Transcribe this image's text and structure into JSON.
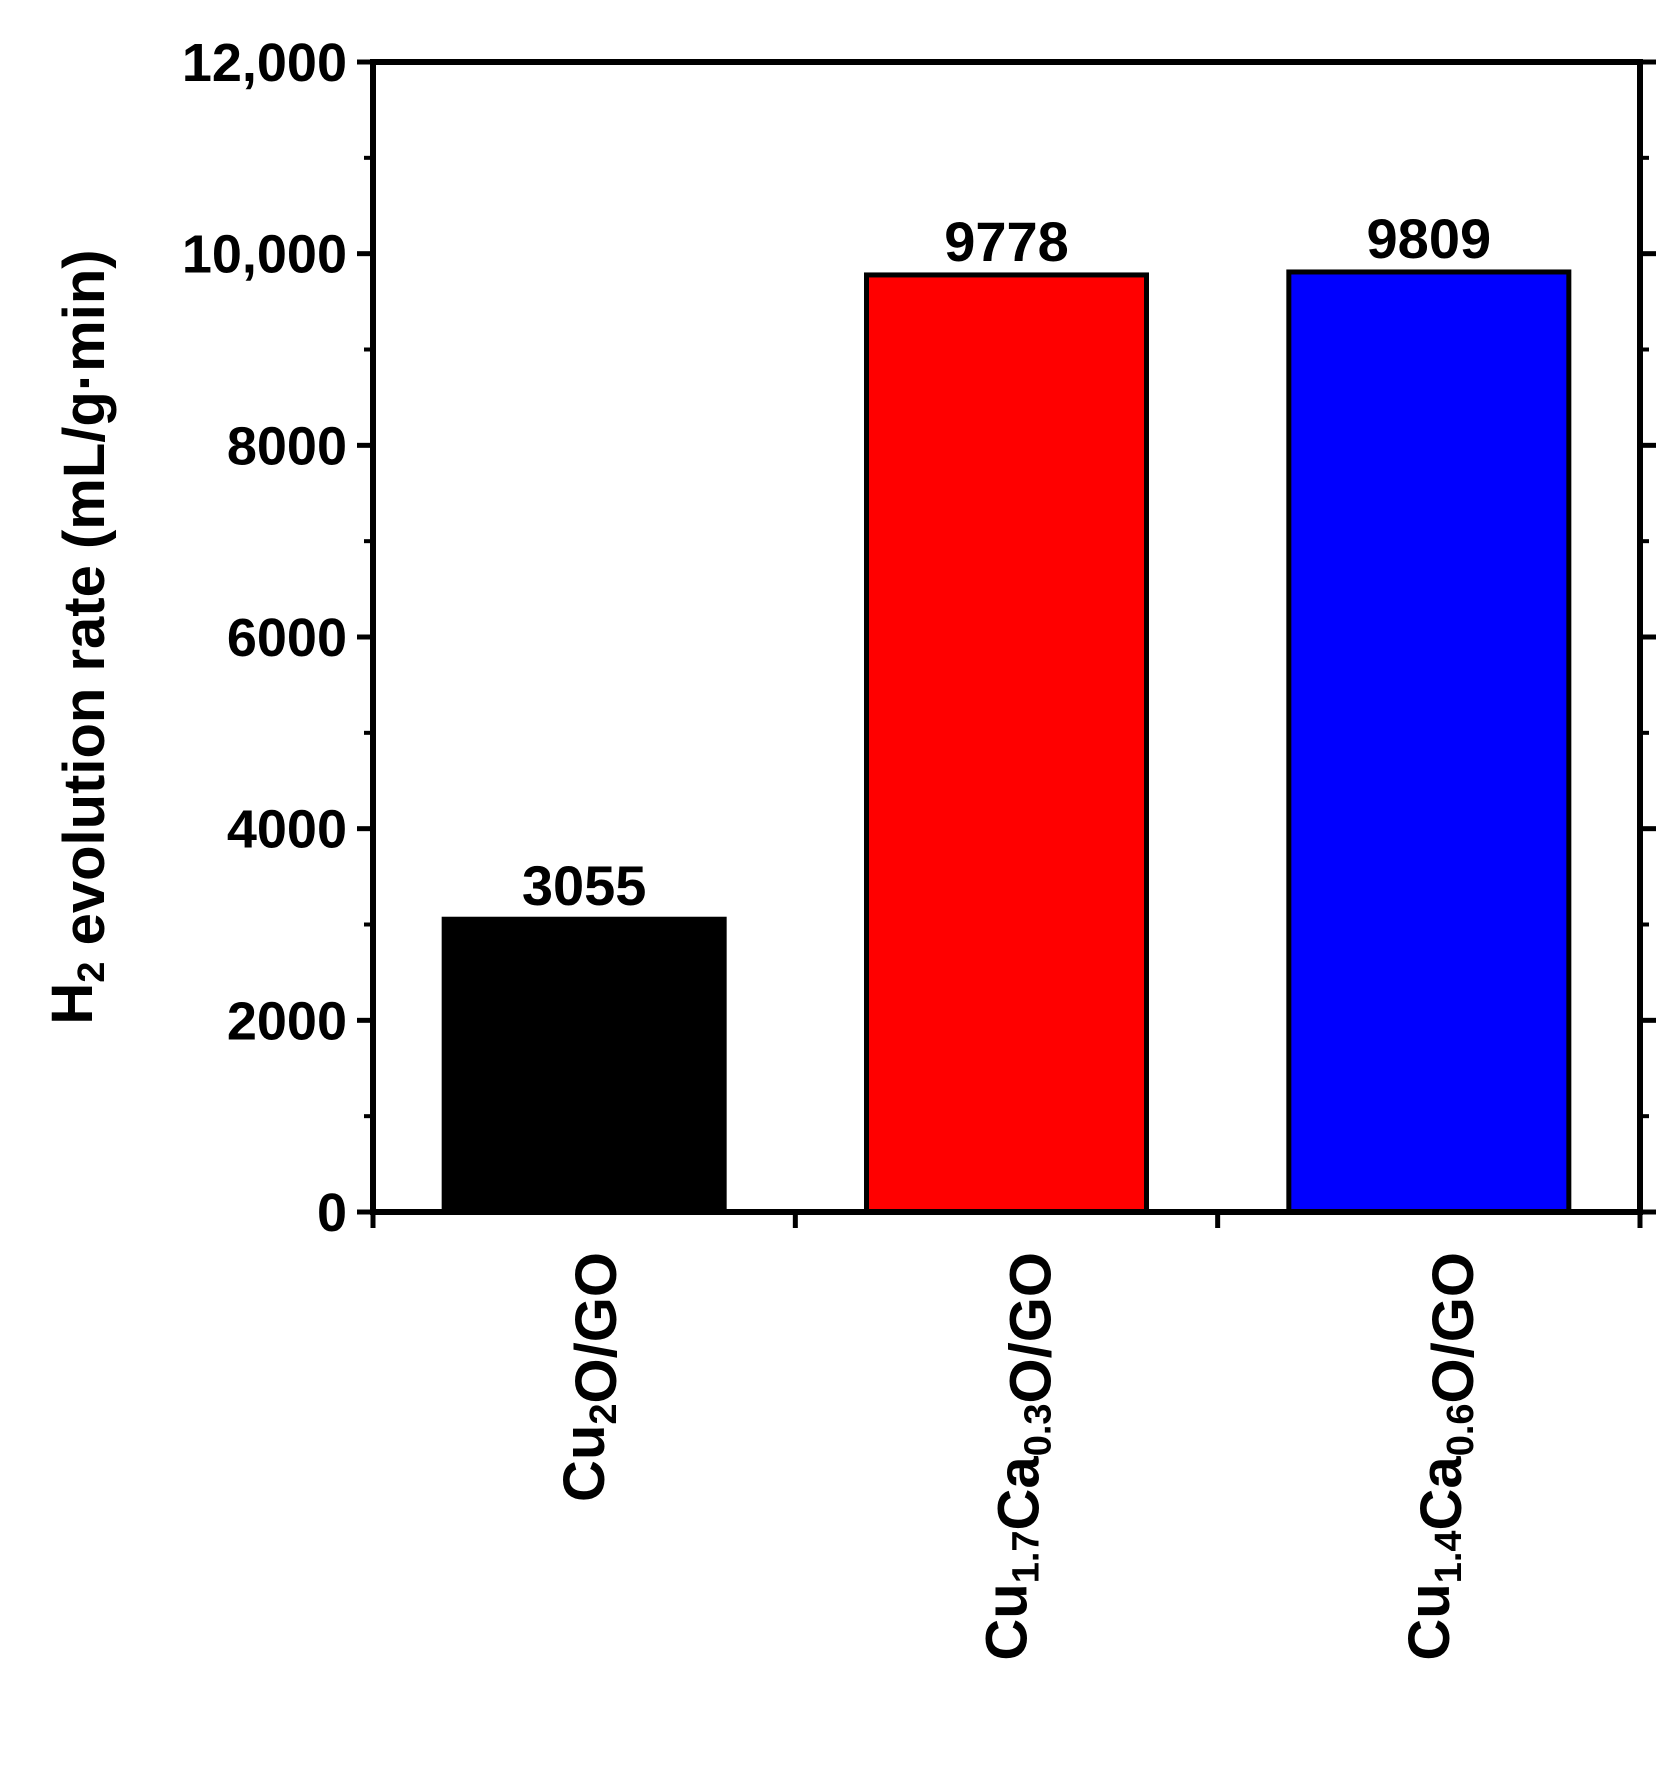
{
  "chart_data": {
    "type": "bar",
    "categories": [
      {
        "base": "Cu",
        "parts": [
          {
            "t": "Cu"
          },
          {
            "t": "2",
            "sub": true
          },
          {
            "t": "O/GO"
          }
        ]
      },
      {
        "base": "Cu",
        "parts": [
          {
            "t": "Cu"
          },
          {
            "t": "1.7",
            "sub": true
          },
          {
            "t": "Ca"
          },
          {
            "t": "0.3",
            "sub": true
          },
          {
            "t": "O/GO"
          }
        ]
      },
      {
        "base": "Cu",
        "parts": [
          {
            "t": "Cu"
          },
          {
            "t": "1.4",
            "sub": true
          },
          {
            "t": "Ca"
          },
          {
            "t": "0.6",
            "sub": true
          },
          {
            "t": "O/GO"
          }
        ]
      }
    ],
    "category_text": [
      "Cu2O/GO",
      "Cu1.7Ca0.3O/GO",
      "Cu1.4Ca0.6O/GO"
    ],
    "values": [
      3055,
      9778,
      9809
    ],
    "data_labels": [
      "3055",
      "9778",
      "9809"
    ],
    "colors": [
      "#000000",
      "#ff0000",
      "#0000ff"
    ],
    "ylabel_parts": [
      {
        "t": "H"
      },
      {
        "t": "2",
        "sub": true
      },
      {
        "t": " evolution rate (mL/g·min)"
      }
    ],
    "ylim": [
      0,
      12000
    ],
    "yticks": [
      0,
      2000,
      4000,
      6000,
      8000,
      10000,
      12000
    ],
    "ytick_labels": [
      "0",
      "2000",
      "4000",
      "6000",
      "8000",
      "10,000",
      "12,000"
    ],
    "grid": false
  }
}
